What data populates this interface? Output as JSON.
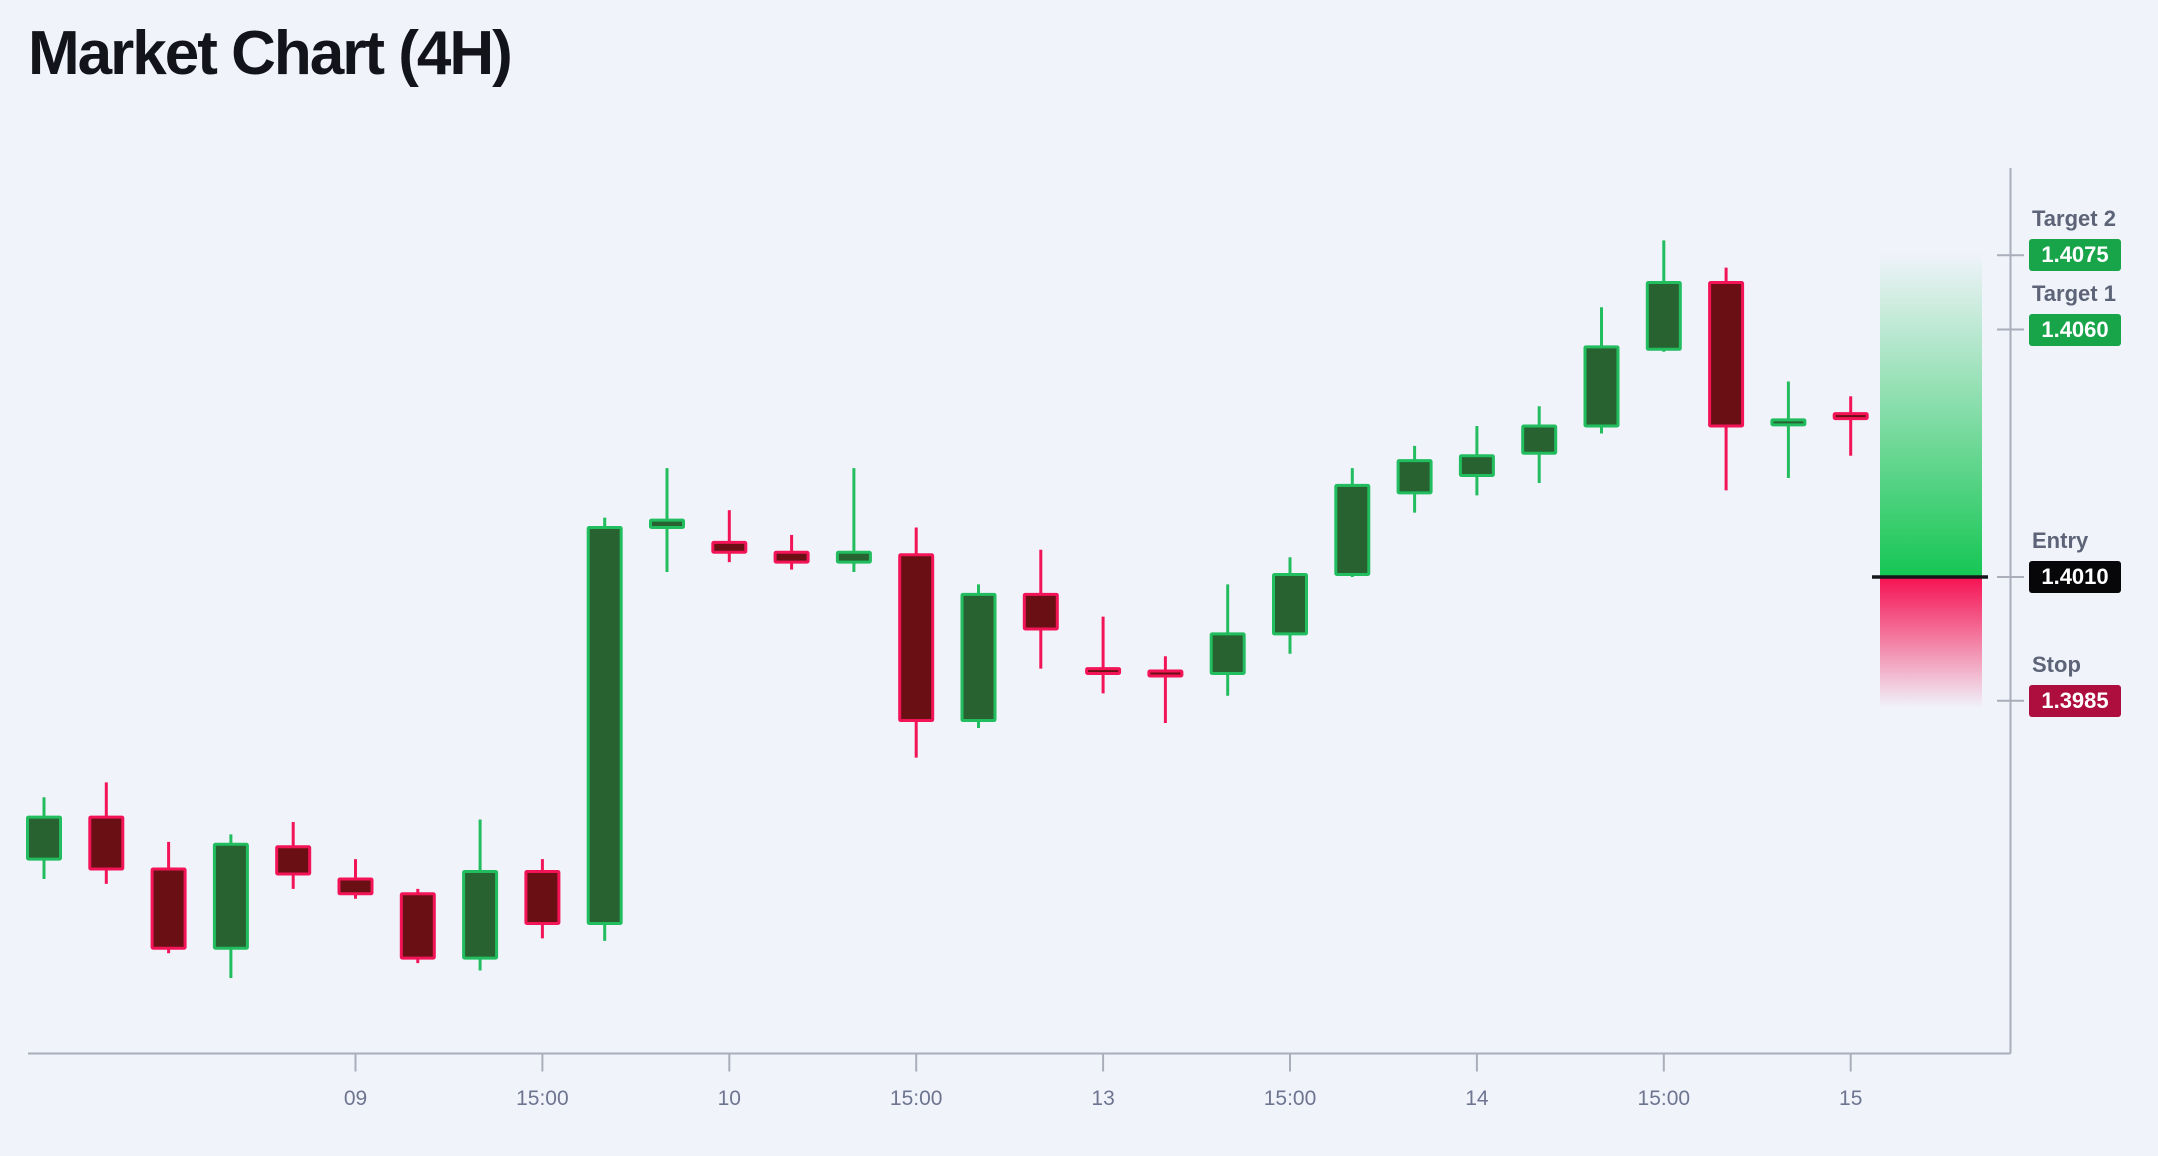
{
  "title": "Market Chart (4H)",
  "chart_data": {
    "type": "candlestick",
    "title": "Market Chart (4H)",
    "timeframe": "4H",
    "grid": false,
    "price_axis_side": "right",
    "visible_price_range": [
      1.3925,
      1.4082
    ],
    "x_axis": {
      "tick_indices": [
        5,
        8,
        11,
        14,
        17,
        20,
        23,
        26,
        29
      ],
      "tick_labels": [
        "09",
        "15:00",
        "10",
        "15:00",
        "13",
        "15:00",
        "14",
        "15:00",
        "15"
      ]
    },
    "candles": [
      {
        "o": 1.3953,
        "h": 1.39655,
        "l": 1.3949,
        "c": 1.39615
      },
      {
        "o": 1.39615,
        "h": 1.39685,
        "l": 1.3948,
        "c": 1.3951
      },
      {
        "o": 1.3951,
        "h": 1.39565,
        "l": 1.3934,
        "c": 1.3935
      },
      {
        "o": 1.3935,
        "h": 1.3958,
        "l": 1.3929,
        "c": 1.3956
      },
      {
        "o": 1.39555,
        "h": 1.39605,
        "l": 1.3947,
        "c": 1.395
      },
      {
        "o": 1.3949,
        "h": 1.3953,
        "l": 1.3945,
        "c": 1.3946
      },
      {
        "o": 1.3946,
        "h": 1.3947,
        "l": 1.3932,
        "c": 1.3933
      },
      {
        "o": 1.3933,
        "h": 1.3961,
        "l": 1.39305,
        "c": 1.39505
      },
      {
        "o": 1.39505,
        "h": 1.3953,
        "l": 1.3937,
        "c": 1.394
      },
      {
        "o": 1.394,
        "h": 1.4022,
        "l": 1.39365,
        "c": 1.402
      },
      {
        "o": 1.402,
        "h": 1.4032,
        "l": 1.4011,
        "c": 1.40215
      },
      {
        "o": 1.4017,
        "h": 1.40235,
        "l": 1.4013,
        "c": 1.4015
      },
      {
        "o": 1.4015,
        "h": 1.40185,
        "l": 1.40115,
        "c": 1.4013
      },
      {
        "o": 1.4013,
        "h": 1.4032,
        "l": 1.4011,
        "c": 1.4015
      },
      {
        "o": 1.40145,
        "h": 1.402,
        "l": 1.39735,
        "c": 1.3981
      },
      {
        "o": 1.3981,
        "h": 1.40085,
        "l": 1.39795,
        "c": 1.40065
      },
      {
        "o": 1.40065,
        "h": 1.40155,
        "l": 1.39915,
        "c": 1.39995
      },
      {
        "o": 1.39915,
        "h": 1.4002,
        "l": 1.39865,
        "c": 1.39905
      },
      {
        "o": 1.3991,
        "h": 1.3994,
        "l": 1.39805,
        "c": 1.399
      },
      {
        "o": 1.39905,
        "h": 1.40085,
        "l": 1.3986,
        "c": 1.39985
      },
      {
        "o": 1.39985,
        "h": 1.4014,
        "l": 1.39945,
        "c": 1.40105
      },
      {
        "o": 1.40105,
        "h": 1.4032,
        "l": 1.401,
        "c": 1.40285
      },
      {
        "o": 1.4027,
        "h": 1.40365,
        "l": 1.4023,
        "c": 1.40335
      },
      {
        "o": 1.40305,
        "h": 1.40405,
        "l": 1.40265,
        "c": 1.40345
      },
      {
        "o": 1.4035,
        "h": 1.40445,
        "l": 1.4029,
        "c": 1.40405
      },
      {
        "o": 1.40405,
        "h": 1.40645,
        "l": 1.4039,
        "c": 1.40565
      },
      {
        "o": 1.4056,
        "h": 1.4078,
        "l": 1.40555,
        "c": 1.40695
      },
      {
        "o": 1.40695,
        "h": 1.40725,
        "l": 1.40275,
        "c": 1.40405
      },
      {
        "o": 1.4041,
        "h": 1.40495,
        "l": 1.403,
        "c": 1.40415
      },
      {
        "o": 1.4043,
        "h": 1.40465,
        "l": 1.40345,
        "c": 1.4042
      }
    ],
    "levels": [
      {
        "name": "Target 2",
        "price": "1.4075",
        "kind": "target"
      },
      {
        "name": "Target 1",
        "price": "1.4060",
        "kind": "target"
      },
      {
        "name": "Entry",
        "price": "1.4010",
        "kind": "entry"
      },
      {
        "name": "Stop",
        "price": "1.3985",
        "kind": "stop"
      }
    ],
    "zone": {
      "top_price": 1.40755,
      "entry_price": 1.401,
      "bottom_price": 1.39835
    },
    "colors": {
      "background": "#f0f3fa",
      "title_text": "#121419",
      "candle_up_fill": "#276230",
      "candle_up_border": "#22bd5f",
      "candle_down_fill": "#6a1015",
      "candle_down_border": "#f31457",
      "zone_green": "#15c653",
      "zone_red": "#f61152",
      "entry_line": "#15161a",
      "badge_target": "#18a54a",
      "badge_entry": "#07070a",
      "badge_stop": "#ad0e3d",
      "level_label_text": "#5d6478",
      "axis_line": "#a9aeba",
      "axis_tick_text": "#6e7590"
    }
  }
}
